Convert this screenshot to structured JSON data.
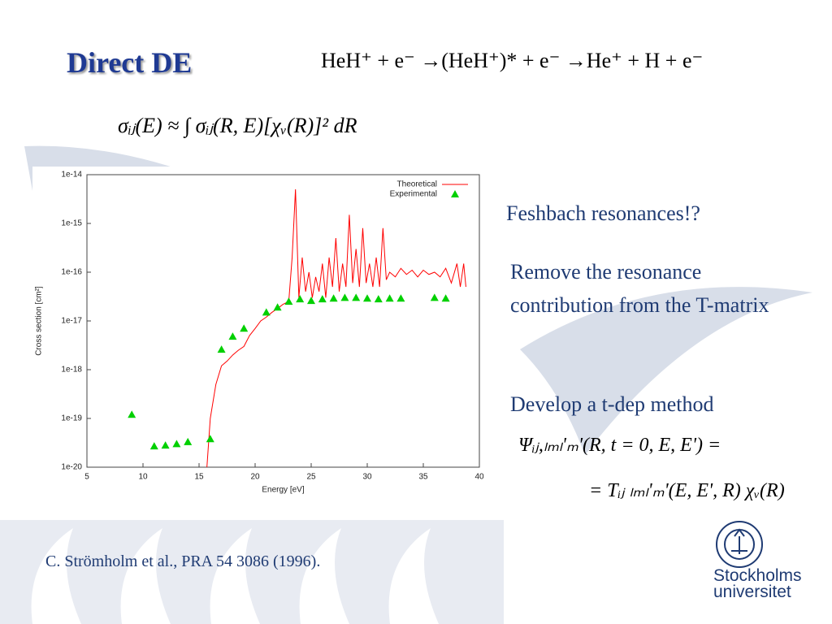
{
  "header": {
    "title": "Direct DE",
    "reaction": "HeH⁺ + e⁻ →(HeH⁺)* + e⁻ →He⁺ + H + e⁻"
  },
  "formula": "σᵢⱼ(E) ≈ ∫ σᵢⱼ(R, E)[χᵥ(R)]² dR",
  "notes": [
    "Feshbach resonances!?",
    "Remove the resonance contribution from the T-matrix",
    "Develop a t-dep method"
  ],
  "equation": [
    "Ψᵢⱼ,ₗₘₗ'ₘ'(R, t = 0, E, E') =",
    "= Tᵢⱼ ₗₘₗ'ₘ'(E, E', R) χᵥ(R)"
  ],
  "citation": "C. Strömholm et al., PRA 54 3086 (1996).",
  "logo": [
    "Stockholms",
    "universitet"
  ],
  "chart_data": {
    "xlabel": "Energy [eV]",
    "ylabel": "Cross section [cm²]",
    "xlim": [
      5,
      40
    ],
    "xticks": [
      5,
      10,
      15,
      20,
      25,
      30,
      35,
      40
    ],
    "ylim": [
      1e-20,
      1e-14
    ],
    "yscale": "log",
    "yticks": [
      {
        "value": 1e-20,
        "label": "1e-20"
      },
      {
        "value": 1e-19,
        "label": "1e-19"
      },
      {
        "value": 1e-18,
        "label": "1e-18"
      },
      {
        "value": 1e-17,
        "label": "1e-17"
      },
      {
        "value": 1e-16,
        "label": "1e-16"
      },
      {
        "value": 1e-15,
        "label": "1e-15"
      },
      {
        "value": 1e-14,
        "label": "1e-14"
      }
    ],
    "legend": "top-right",
    "series": [
      {
        "name": "Theoretical",
        "type": "line",
        "color": "#ff0000",
        "x": [
          15.7,
          16.0,
          16.5,
          17.0,
          17.5,
          18.0,
          18.5,
          19.0,
          19.5,
          20.0,
          20.5,
          21.0,
          21.5,
          22.0,
          22.5,
          23.0,
          23.3,
          23.6,
          23.9,
          24.2,
          24.5,
          24.8,
          25.1,
          25.4,
          25.7,
          26.0,
          26.3,
          26.6,
          26.9,
          27.2,
          27.5,
          27.8,
          28.1,
          28.4,
          28.7,
          29.0,
          29.3,
          29.6,
          29.9,
          30.2,
          30.5,
          30.8,
          31.1,
          31.4,
          31.7,
          32.0,
          32.5,
          33.0,
          33.5,
          34.0,
          34.5,
          35.0,
          35.5,
          36.0,
          36.5,
          37.0,
          37.5,
          38.0,
          38.3,
          38.6,
          38.8
        ],
        "values": [
          1e-20,
          1e-19,
          5e-19,
          1.2e-18,
          1.5e-18,
          2e-18,
          2.5e-18,
          3e-18,
          5e-18,
          7e-18,
          1e-17,
          1.2e-17,
          1.5e-17,
          1.8e-17,
          2.2e-17,
          2.5e-17,
          2e-16,
          5e-15,
          3e-17,
          2e-16,
          4e-17,
          1e-16,
          3e-17,
          8e-17,
          4e-17,
          1.5e-16,
          3e-17,
          2e-16,
          5e-17,
          5e-16,
          4e-17,
          1.5e-16,
          5e-17,
          1.5e-15,
          6e-17,
          3e-16,
          5e-17,
          8e-16,
          6e-17,
          1.5e-16,
          5e-17,
          2e-16,
          5e-17,
          8e-16,
          7e-17,
          1e-16,
          8e-17,
          1.2e-16,
          9e-17,
          1.1e-16,
          8e-17,
          1.1e-16,
          9e-17,
          1e-16,
          8e-17,
          1.2e-16,
          6e-17,
          1.5e-16,
          5e-17,
          1.5e-16,
          5e-17
        ]
      },
      {
        "name": "Experimental",
        "type": "scatter",
        "color": "#00d000",
        "x": [
          9,
          11,
          12,
          13,
          14,
          16,
          17,
          18,
          19,
          21,
          22,
          23,
          24,
          25,
          26,
          27,
          28,
          29,
          30,
          31,
          32,
          33,
          36,
          37
        ],
        "values": [
          1.2e-19,
          2.7e-20,
          2.8e-20,
          3e-20,
          3.3e-20,
          3.8e-20,
          2.6e-18,
          4.8e-18,
          7e-18,
          1.5e-17,
          1.9e-17,
          2.5e-17,
          2.8e-17,
          2.6e-17,
          2.8e-17,
          2.9e-17,
          3e-17,
          3e-17,
          2.9e-17,
          2.8e-17,
          2.9e-17,
          2.9e-17,
          3e-17,
          2.9e-17
        ]
      }
    ]
  }
}
